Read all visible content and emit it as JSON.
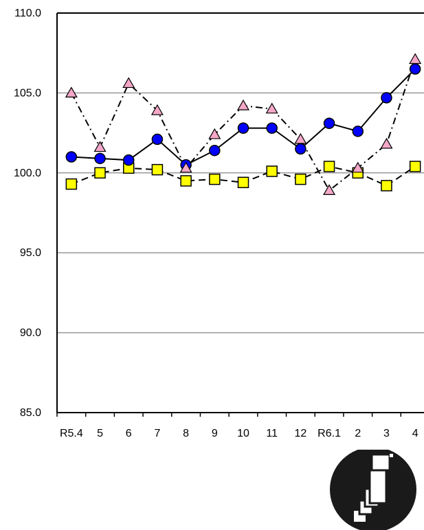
{
  "chart_data": {
    "type": "line",
    "title": "",
    "xlabel": "",
    "ylabel": "",
    "categories": [
      "R5.4",
      "5",
      "6",
      "7",
      "8",
      "9",
      "10",
      "11",
      "12",
      "R6.1",
      "2",
      "3",
      "4"
    ],
    "ylim": [
      85.0,
      110.0
    ],
    "yticks": [
      "85.0",
      "90.0",
      "95.0",
      "100.0",
      "105.0",
      "110.0"
    ],
    "grid": true,
    "legend": "none",
    "series": [
      {
        "marker": "circle",
        "line": "solid",
        "color": "#0000ff",
        "values": [
          101.0,
          100.9,
          100.8,
          102.1,
          100.5,
          101.4,
          102.8,
          102.8,
          101.5,
          103.1,
          102.6,
          104.7,
          106.5
        ]
      },
      {
        "marker": "triangle",
        "line": "dash-dot",
        "color": "#f4a7c8",
        "values": [
          105.0,
          101.6,
          105.6,
          103.9,
          100.3,
          102.4,
          104.2,
          104.0,
          102.1,
          98.9,
          100.3,
          101.8,
          107.1
        ]
      },
      {
        "marker": "square",
        "line": "dashed",
        "color": "#ffff00",
        "values": [
          99.3,
          100.0,
          100.3,
          100.2,
          99.5,
          99.6,
          99.4,
          100.1,
          99.6,
          100.4,
          100.0,
          99.2,
          100.4
        ]
      }
    ]
  },
  "logo": {
    "icon": "stacked-squares-logo-icon"
  }
}
